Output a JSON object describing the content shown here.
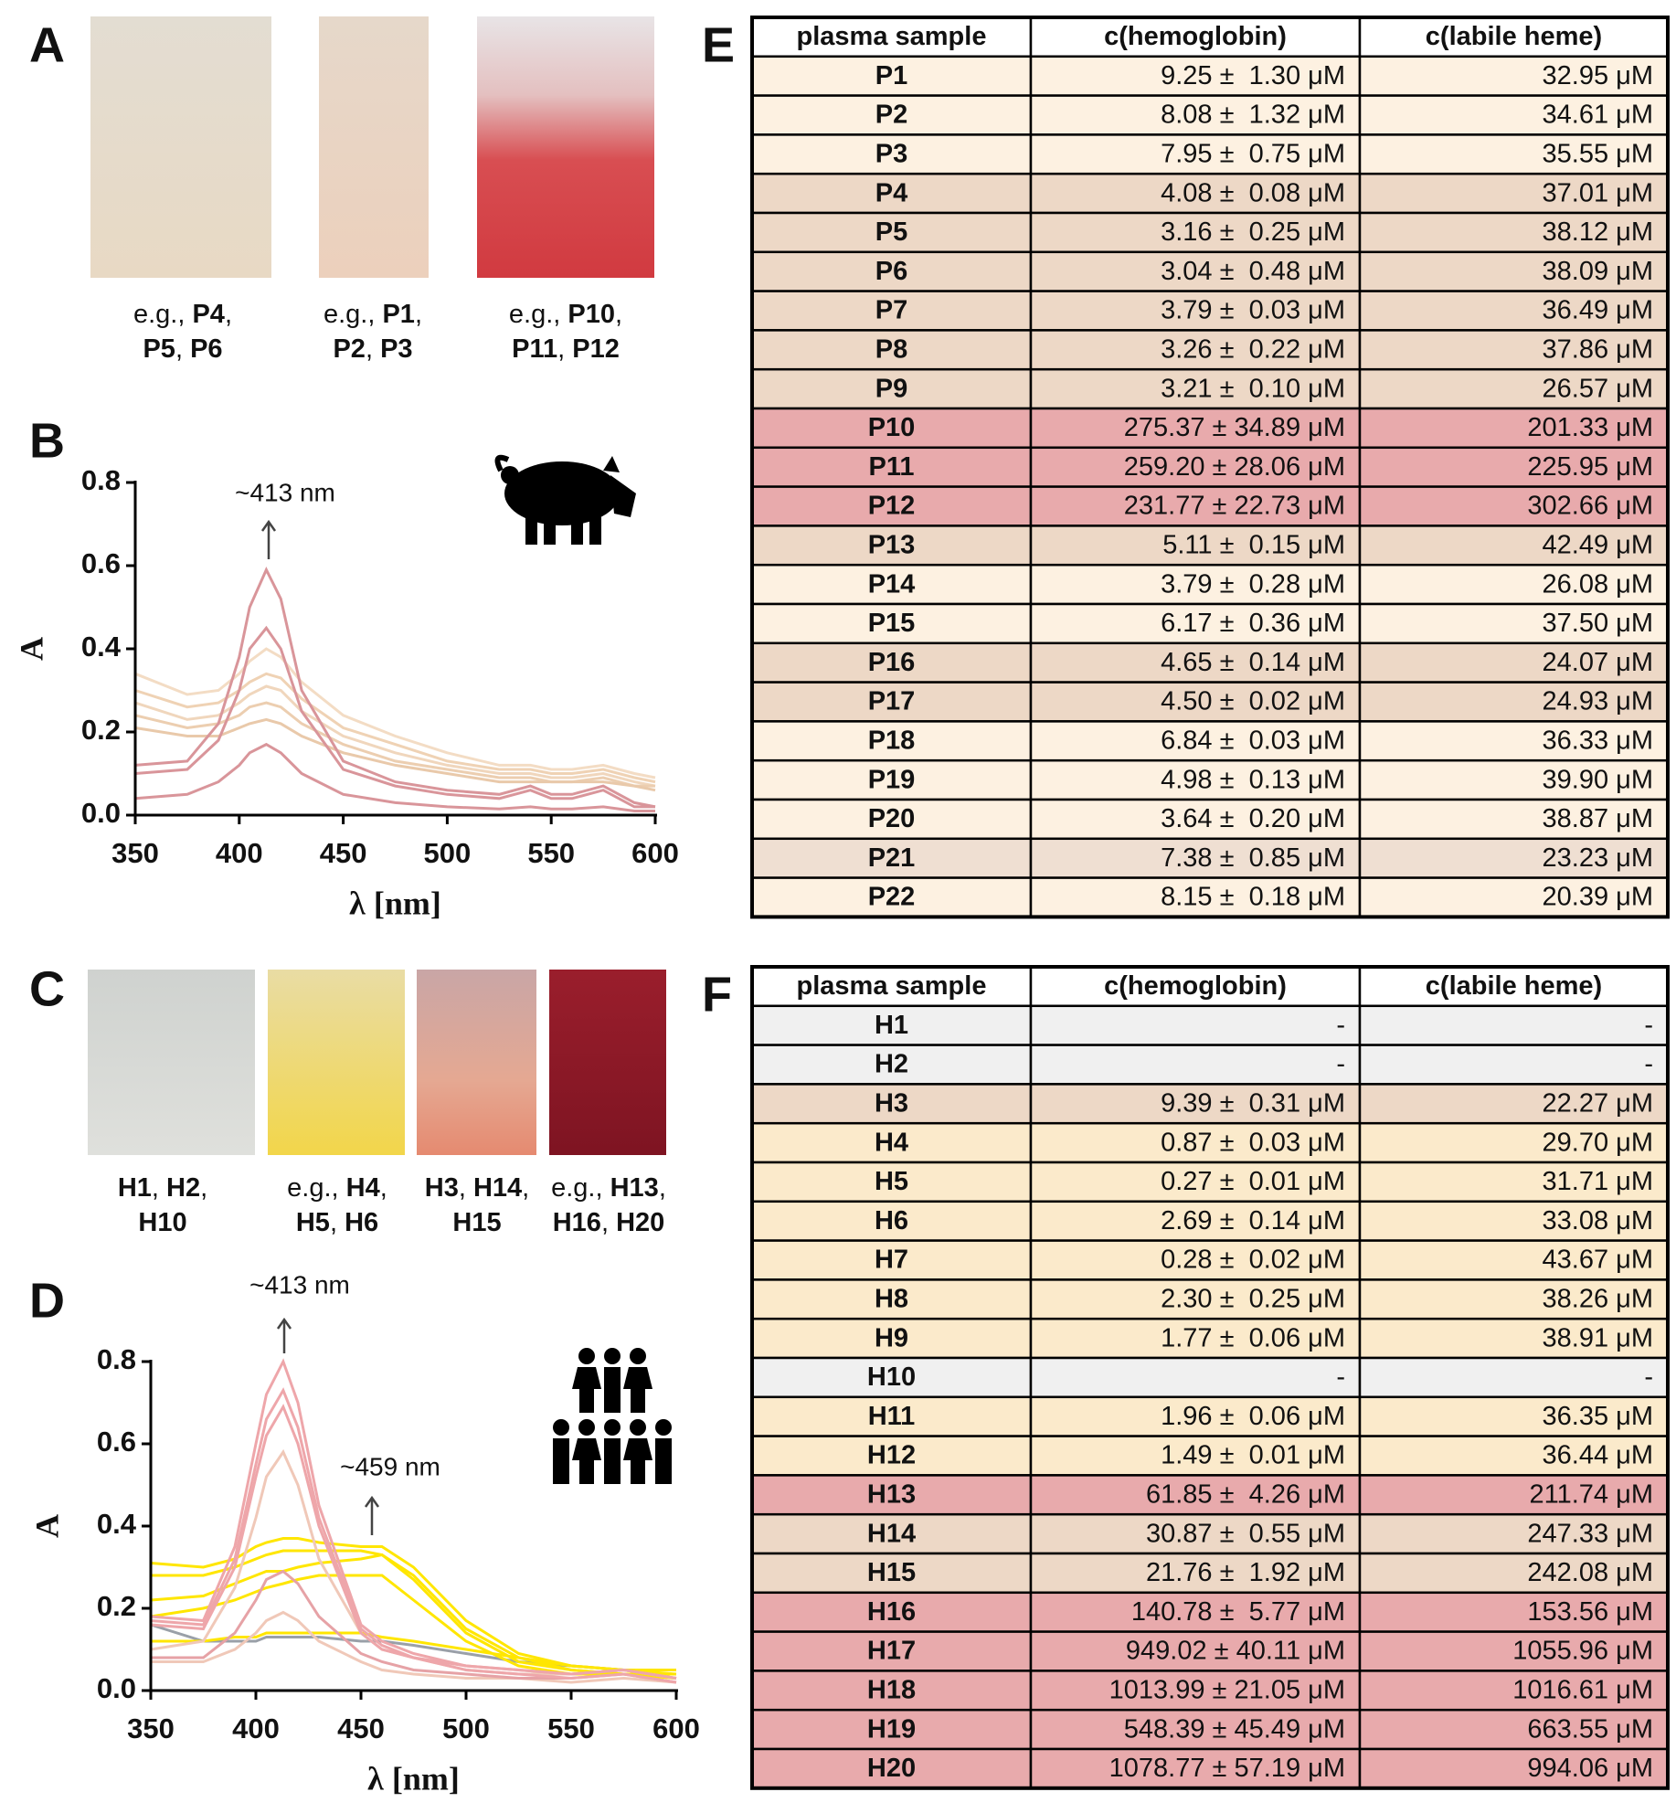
{
  "panel_letters": [
    "A",
    "B",
    "C",
    "D",
    "E",
    "F"
  ],
  "photos_a": [
    {
      "caption": [
        [
          "e.g., ",
          "P4",
          ","
        ],
        [
          "P5",
          ", ",
          "P6"
        ]
      ]
    },
    {
      "caption": [
        [
          "e.g., ",
          "P1",
          ","
        ],
        [
          "P2",
          ", ",
          "P3"
        ]
      ]
    },
    {
      "caption": [
        [
          "e.g., ",
          "P10",
          ","
        ],
        [
          "P11",
          ", ",
          "P12"
        ]
      ]
    }
  ],
  "photos_c": [
    {
      "caption": [
        [
          "H1",
          ", ",
          "H2",
          ","
        ],
        [
          "H10"
        ]
      ]
    },
    {
      "caption": [
        [
          "e.g., ",
          "H4",
          ","
        ],
        [
          "H5",
          ", ",
          "H6"
        ]
      ]
    },
    {
      "caption": [
        [
          "H3",
          ", ",
          "H14",
          ","
        ],
        [
          "H15"
        ]
      ]
    },
    {
      "caption": [
        [
          "e.g., ",
          "H13",
          ","
        ],
        [
          "H16",
          ", ",
          "H20"
        ]
      ]
    }
  ],
  "chart_data": [
    {
      "type": "line",
      "xlabel": "λ [nm]",
      "ylabel": "A",
      "annotations": [
        "~413 nm"
      ],
      "x": [
        350,
        375,
        390,
        400,
        405,
        413,
        420,
        430,
        450,
        475,
        500,
        525,
        540,
        550,
        560,
        575,
        590,
        600
      ],
      "xlim": [
        350,
        600
      ],
      "ylim": [
        0,
        0.8
      ],
      "xticks": [
        350,
        400,
        450,
        500,
        550,
        600
      ],
      "yticks": [
        {
          "value": 0,
          "label": "0.0"
        },
        0.2,
        0.4,
        0.6,
        0.8
      ],
      "series": [
        {
          "color": "#f3dcc4",
          "values": [
            0.34,
            0.29,
            0.3,
            0.34,
            0.37,
            0.4,
            0.38,
            0.32,
            0.24,
            0.19,
            0.15,
            0.12,
            0.12,
            0.11,
            0.11,
            0.12,
            0.1,
            0.09
          ]
        },
        {
          "color": "#efd2b4",
          "values": [
            0.3,
            0.26,
            0.27,
            0.3,
            0.32,
            0.34,
            0.33,
            0.28,
            0.21,
            0.17,
            0.13,
            0.11,
            0.11,
            0.1,
            0.1,
            0.11,
            0.09,
            0.08
          ]
        },
        {
          "color": "#f0d6bc",
          "values": [
            0.27,
            0.23,
            0.24,
            0.27,
            0.29,
            0.31,
            0.3,
            0.25,
            0.19,
            0.15,
            0.12,
            0.1,
            0.1,
            0.09,
            0.09,
            0.1,
            0.08,
            0.07
          ]
        },
        {
          "color": "#ecceb0",
          "values": [
            0.24,
            0.21,
            0.22,
            0.24,
            0.26,
            0.27,
            0.26,
            0.22,
            0.17,
            0.13,
            0.11,
            0.09,
            0.09,
            0.08,
            0.08,
            0.09,
            0.07,
            0.07
          ]
        },
        {
          "color": "#e9c9aa",
          "values": [
            0.21,
            0.19,
            0.19,
            0.21,
            0.22,
            0.23,
            0.22,
            0.19,
            0.15,
            0.12,
            0.1,
            0.08,
            0.08,
            0.08,
            0.08,
            0.08,
            0.07,
            0.06
          ]
        },
        {
          "color": "#d9959a",
          "values": [
            0.12,
            0.13,
            0.22,
            0.38,
            0.5,
            0.59,
            0.52,
            0.3,
            0.13,
            0.08,
            0.06,
            0.05,
            0.07,
            0.05,
            0.05,
            0.07,
            0.03,
            0.02
          ]
        },
        {
          "color": "#d9959a",
          "values": [
            0.1,
            0.11,
            0.18,
            0.3,
            0.4,
            0.45,
            0.4,
            0.25,
            0.11,
            0.07,
            0.05,
            0.04,
            0.06,
            0.04,
            0.04,
            0.06,
            0.02,
            0.02
          ]
        },
        {
          "color": "#d9959a",
          "values": [
            0.04,
            0.05,
            0.08,
            0.12,
            0.15,
            0.17,
            0.15,
            0.1,
            0.05,
            0.03,
            0.02,
            0.015,
            0.02,
            0.015,
            0.015,
            0.02,
            0.01,
            0.01
          ]
        }
      ]
    },
    {
      "type": "line",
      "xlabel": "λ [nm]",
      "ylabel": "A",
      "annotations": [
        "~413 nm",
        "~459 nm"
      ],
      "x": [
        350,
        375,
        390,
        400,
        405,
        413,
        420,
        430,
        450,
        460,
        475,
        500,
        525,
        550,
        575,
        600
      ],
      "xlim": [
        350,
        600
      ],
      "ylim": [
        0,
        0.8
      ],
      "xticks": [
        350,
        400,
        450,
        500,
        550,
        600
      ],
      "yticks": [
        {
          "value": 0,
          "label": "0.0"
        },
        0.2,
        0.4,
        0.6,
        0.8
      ],
      "series": [
        {
          "color": "#9aa0a8",
          "values": [
            0.16,
            0.12,
            0.12,
            0.12,
            0.13,
            0.13,
            0.13,
            0.13,
            0.12,
            0.12,
            0.11,
            0.09,
            0.07,
            0.06,
            0.05,
            0.05
          ]
        },
        {
          "color": "#ffe600",
          "values": [
            0.31,
            0.3,
            0.32,
            0.35,
            0.36,
            0.37,
            0.37,
            0.36,
            0.35,
            0.35,
            0.3,
            0.17,
            0.09,
            0.06,
            0.05,
            0.04
          ]
        },
        {
          "color": "#ffe600",
          "values": [
            0.28,
            0.28,
            0.3,
            0.32,
            0.33,
            0.34,
            0.34,
            0.34,
            0.34,
            0.33,
            0.28,
            0.15,
            0.08,
            0.05,
            0.04,
            0.04
          ]
        },
        {
          "color": "#ffe600",
          "values": [
            0.22,
            0.23,
            0.26,
            0.28,
            0.29,
            0.29,
            0.3,
            0.31,
            0.32,
            0.33,
            0.27,
            0.14,
            0.07,
            0.05,
            0.04,
            0.03
          ]
        },
        {
          "color": "#ffe600",
          "values": [
            0.18,
            0.2,
            0.22,
            0.24,
            0.25,
            0.26,
            0.27,
            0.28,
            0.28,
            0.28,
            0.22,
            0.12,
            0.06,
            0.04,
            0.04,
            0.03
          ]
        },
        {
          "color": "#ffe600",
          "values": [
            0.12,
            0.12,
            0.13,
            0.13,
            0.14,
            0.14,
            0.14,
            0.14,
            0.14,
            0.13,
            0.12,
            0.1,
            0.08,
            0.06,
            0.05,
            0.05
          ]
        },
        {
          "color": "#f0c8b8",
          "values": [
            0.1,
            0.12,
            0.25,
            0.42,
            0.52,
            0.58,
            0.5,
            0.32,
            0.14,
            0.1,
            0.08,
            0.05,
            0.04,
            0.04,
            0.05,
            0.03
          ]
        },
        {
          "color": "#f0c8b8",
          "values": [
            0.07,
            0.07,
            0.1,
            0.14,
            0.17,
            0.19,
            0.17,
            0.12,
            0.07,
            0.05,
            0.04,
            0.03,
            0.03,
            0.02,
            0.03,
            0.02
          ]
        },
        {
          "color": "#e6a2a6",
          "values": [
            0.08,
            0.08,
            0.14,
            0.22,
            0.27,
            0.29,
            0.26,
            0.18,
            0.09,
            0.07,
            0.05,
            0.04,
            0.03,
            0.03,
            0.04,
            0.02
          ]
        },
        {
          "color": "#eea6aa",
          "values": [
            0.18,
            0.17,
            0.35,
            0.6,
            0.72,
            0.8,
            0.7,
            0.45,
            0.16,
            0.12,
            0.09,
            0.06,
            0.05,
            0.04,
            0.05,
            0.03
          ]
        },
        {
          "color": "#eea6aa",
          "values": [
            0.17,
            0.16,
            0.32,
            0.55,
            0.66,
            0.73,
            0.64,
            0.42,
            0.15,
            0.11,
            0.08,
            0.06,
            0.05,
            0.04,
            0.05,
            0.03
          ]
        },
        {
          "color": "#eea6aa",
          "values": [
            0.16,
            0.15,
            0.3,
            0.52,
            0.62,
            0.69,
            0.6,
            0.4,
            0.14,
            0.1,
            0.08,
            0.05,
            0.04,
            0.03,
            0.04,
            0.02
          ]
        }
      ]
    }
  ],
  "table_e": {
    "header": [
      "plasma sample",
      "c(hemoglobin)",
      "c(labile heme)"
    ],
    "rows": [
      {
        "color": "#fdf1e1",
        "cells": [
          "P1",
          "9.25 ±  1.30 μM",
          "32.95 μM"
        ]
      },
      {
        "color": "#fdf1e1",
        "cells": [
          "P2",
          "8.08 ±  1.32 μM",
          "34.61 μM"
        ]
      },
      {
        "color": "#fdf1e1",
        "cells": [
          "P3",
          "7.95 ±  0.75 μM",
          "35.55 μM"
        ]
      },
      {
        "color": "#edd8c6",
        "cells": [
          "P4",
          "4.08 ±  0.08 μM",
          "37.01 μM"
        ]
      },
      {
        "color": "#edd8c6",
        "cells": [
          "P5",
          "3.16 ±  0.25 μM",
          "38.12 μM"
        ]
      },
      {
        "color": "#edd8c6",
        "cells": [
          "P6",
          "3.04 ±  0.48 μM",
          "38.09 μM"
        ]
      },
      {
        "color": "#edd8c6",
        "cells": [
          "P7",
          "3.79 ±  0.03 μM",
          "36.49 μM"
        ]
      },
      {
        "color": "#edd8c6",
        "cells": [
          "P8",
          "3.26 ±  0.22 μM",
          "37.86 μM"
        ]
      },
      {
        "color": "#edd8c6",
        "cells": [
          "P9",
          "3.21 ±  0.10 μM",
          "26.57 μM"
        ]
      },
      {
        "color": "#e8aaac",
        "cells": [
          "P10",
          "275.37 ± 34.89 μM",
          "201.33 μM"
        ]
      },
      {
        "color": "#e8aaac",
        "cells": [
          "P11",
          "259.20 ± 28.06 μM",
          "225.95 μM"
        ]
      },
      {
        "color": "#e8aaac",
        "cells": [
          "P12",
          "231.77 ± 22.73 μM",
          "302.66 μM"
        ]
      },
      {
        "color": "#edd8c6",
        "cells": [
          "P13",
          "5.11 ±  0.15 μM",
          "42.49 μM"
        ]
      },
      {
        "color": "#fdf1e1",
        "cells": [
          "P14",
          "3.79 ±  0.28 μM",
          "26.08 μM"
        ]
      },
      {
        "color": "#fdf1e1",
        "cells": [
          "P15",
          "6.17 ±  0.36 μM",
          "37.50 μM"
        ]
      },
      {
        "color": "#edd8c6",
        "cells": [
          "P16",
          "4.65 ±  0.14 μM",
          "24.07 μM"
        ]
      },
      {
        "color": "#edd8c6",
        "cells": [
          "P17",
          "4.50 ±  0.02 μM",
          "24.93 μM"
        ]
      },
      {
        "color": "#fdf1e1",
        "cells": [
          "P18",
          "6.84 ±  0.03 μM",
          "36.33 μM"
        ]
      },
      {
        "color": "#fdf1e1",
        "cells": [
          "P19",
          "4.98 ±  0.13 μM",
          "39.90 μM"
        ]
      },
      {
        "color": "#fdf1e1",
        "cells": [
          "P20",
          "3.64 ±  0.20 μM",
          "38.87 μM"
        ]
      },
      {
        "color": "#efdfd2",
        "cells": [
          "P21",
          "7.38 ±  0.85 μM",
          "23.23 μM"
        ]
      },
      {
        "color": "#fdf1e1",
        "cells": [
          "P22",
          "8.15 ±  0.18 μM",
          "20.39 μM"
        ]
      }
    ]
  },
  "table_f": {
    "header": [
      "plasma sample",
      "c(hemoglobin)",
      "c(labile heme)"
    ],
    "rows": [
      {
        "color": "#f0f0f0",
        "cells": [
          "H1",
          "-",
          "-"
        ]
      },
      {
        "color": "#f0f0f0",
        "cells": [
          "H2",
          "-",
          "-"
        ]
      },
      {
        "color": "#edd8c6",
        "cells": [
          "H3",
          "9.39 ±  0.31 μM",
          "22.27 μM"
        ]
      },
      {
        "color": "#fbeacb",
        "cells": [
          "H4",
          "0.87 ±  0.03 μM",
          "29.70 μM"
        ]
      },
      {
        "color": "#fbeacb",
        "cells": [
          "H5",
          "0.27 ±  0.01 μM",
          "31.71 μM"
        ]
      },
      {
        "color": "#fbeacb",
        "cells": [
          "H6",
          "2.69 ±  0.14 μM",
          "33.08 μM"
        ]
      },
      {
        "color": "#fbeacb",
        "cells": [
          "H7",
          "0.28 ±  0.02 μM",
          "43.67 μM"
        ]
      },
      {
        "color": "#fbeacb",
        "cells": [
          "H8",
          "2.30 ±  0.25 μM",
          "38.26 μM"
        ]
      },
      {
        "color": "#fbeacb",
        "cells": [
          "H9",
          "1.77 ±  0.06 μM",
          "38.91 μM"
        ]
      },
      {
        "color": "#f0f0f0",
        "cells": [
          "H10",
          "-",
          "-"
        ]
      },
      {
        "color": "#fbeacb",
        "cells": [
          "H11",
          "1.96 ±  0.06 μM",
          "36.35 μM"
        ]
      },
      {
        "color": "#fbeacb",
        "cells": [
          "H12",
          "1.49 ±  0.01 μM",
          "36.44 μM"
        ]
      },
      {
        "color": "#e8aaac",
        "cells": [
          "H13",
          "61.85 ±  4.26 μM",
          "211.74 μM"
        ]
      },
      {
        "color": "#edd8c6",
        "cells": [
          "H14",
          "30.87 ±  0.55 μM",
          "247.33 μM"
        ]
      },
      {
        "color": "#edd8c6",
        "cells": [
          "H15",
          "21.76 ±  1.92 μM",
          "242.08 μM"
        ]
      },
      {
        "color": "#e8aaac",
        "cells": [
          "H16",
          "140.78 ±  5.77 μM",
          "153.56 μM"
        ]
      },
      {
        "color": "#e8aaac",
        "cells": [
          "H17",
          "949.02 ± 40.11 μM",
          "1055.96 μM"
        ]
      },
      {
        "color": "#e8aaac",
        "cells": [
          "H18",
          "1013.99 ± 21.05 μM",
          "1016.61 μM"
        ]
      },
      {
        "color": "#e8aaac",
        "cells": [
          "H19",
          "548.39 ± 45.49 μM",
          "663.55 μM"
        ]
      },
      {
        "color": "#e8aaac",
        "cells": [
          "H20",
          "1078.77 ± 57.19 μM",
          "994.06 μM"
        ]
      }
    ]
  }
}
